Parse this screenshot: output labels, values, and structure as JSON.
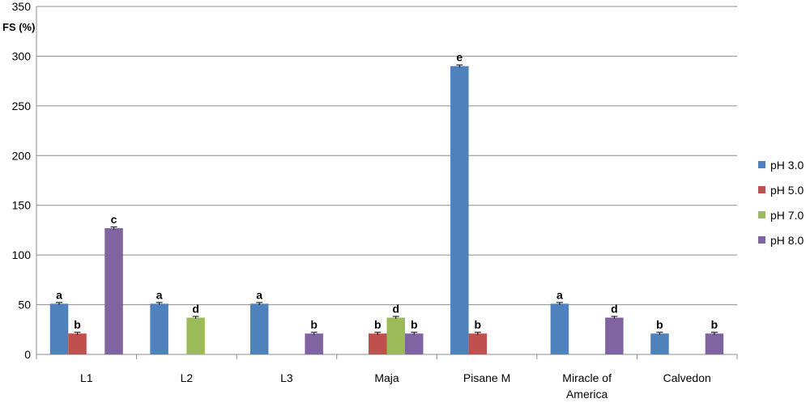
{
  "chart_data": {
    "type": "bar",
    "title": "",
    "ylabel": "FS (%)",
    "xlabel": "",
    "ylim": [
      0,
      350
    ],
    "yticks": [
      0,
      50,
      100,
      150,
      200,
      250,
      300,
      350
    ],
    "grid": true,
    "legend_position": "right",
    "categories": [
      [
        "L1"
      ],
      [
        "L2"
      ],
      [
        "L3"
      ],
      [
        "Maja"
      ],
      [
        "Pisane M"
      ],
      [
        "Miracle of",
        "America"
      ],
      [
        "Calvedon"
      ]
    ],
    "series": [
      {
        "name": "pH 3.0",
        "color": "#4f81bd",
        "values": [
          51,
          51,
          51,
          null,
          290,
          51,
          21
        ],
        "labels": [
          "a",
          "a",
          "a",
          null,
          "e",
          "a",
          "b"
        ]
      },
      {
        "name": "pH 5.0",
        "color": "#c0504d",
        "values": [
          21,
          null,
          null,
          21,
          21,
          null,
          null
        ],
        "labels": [
          "b",
          null,
          null,
          "b",
          "b",
          null,
          null
        ]
      },
      {
        "name": "pH 7.0",
        "color": "#9bbb59",
        "values": [
          null,
          37,
          null,
          37,
          null,
          null,
          null
        ],
        "labels": [
          null,
          "d",
          null,
          "d",
          null,
          null,
          null
        ]
      },
      {
        "name": "pH 8.0",
        "color": "#8064a2",
        "values": [
          127,
          null,
          21,
          21,
          null,
          37,
          21
        ],
        "labels": [
          "c",
          null,
          "b",
          "b",
          null,
          "d",
          "b"
        ]
      }
    ]
  }
}
